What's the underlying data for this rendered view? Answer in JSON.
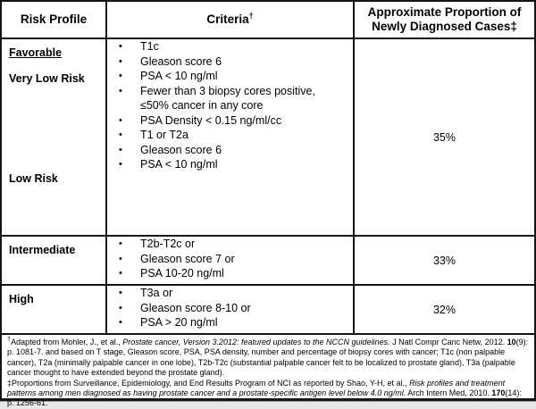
{
  "colors": {
    "border": "#141414",
    "text": "#000000",
    "background": "#ffffff",
    "outer_frame": "#9a9a9a"
  },
  "icons": {
    "bullet": "•"
  },
  "header": {
    "risk_profile": "Risk Profile",
    "criteria_label": "Criteria",
    "criteria_dagger": "†",
    "proportion": "Approximate Proportion of Newly Diagnosed Cases‡"
  },
  "favorable_row": {
    "group_label": "Favorable",
    "proportion": "35%",
    "sub_rows": [
      {
        "label": "Very Low Risk",
        "criteria": [
          "T1c",
          "Gleason score 6",
          "PSA < 10 ng/ml",
          "Fewer than 3 biopsy cores positive, ≤50% cancer in any core",
          "PSA Density < 0.15 ng/ml/cc"
        ]
      },
      {
        "label": "Low Risk",
        "criteria": [
          "T1 or T2a",
          "Gleason score 6",
          "PSA < 10 ng/ml"
        ]
      }
    ]
  },
  "rows": [
    {
      "label": "Intermediate",
      "criteria": [
        "T2b-T2c or",
        "Gleason score 7 or",
        "PSA 10-20 ng/ml"
      ],
      "proportion": "33%"
    },
    {
      "label": "High",
      "criteria": [
        "T3a or",
        "Gleason score 8-10 or",
        "PSA > 20 ng/ml"
      ],
      "proportion": "32%"
    }
  ],
  "footnotes": [
    {
      "segments": [
        {
          "t": "†",
          "sup": true
        },
        {
          "t": "Adapted  from Mohler, J., et al., "
        },
        {
          "t": "Prostate cancer, Version 3.2012: featured updates to the NCCN guidelines.",
          "i": true
        },
        {
          "t": " J Natl Compr Canc Netw, 2012. "
        },
        {
          "t": "10",
          "b": true
        },
        {
          "t": "(9): p. 1081-7.  and based on T stage, Gleason score, PSA, PSA density, number and percentage of biopsy cores with cancer; T1c (non palpable cancer), T2a (minimally palpable cancer in one lobe), T2b-T2c (substantial palpable cancer felt to be localized to prostate gland), T3a (palpable cancer thought to have extended beyond the prostate gland)."
        }
      ]
    },
    {
      "segments": [
        {
          "t": "‡Proportions from Surveillance, Epidemiology, and End Results Program of NCI as reported by Shao, Y-H, et al., "
        },
        {
          "t": "Risk profiles and treatment patterns among men diagnosed as having prostate cancer and a prostate-specific antigen level below 4.0 ng/ml.",
          "i": true
        },
        {
          "t": " Arch Intern Med, 2010. "
        },
        {
          "t": "170",
          "b": true
        },
        {
          "t": "(14): p. 1256-61."
        }
      ]
    }
  ]
}
